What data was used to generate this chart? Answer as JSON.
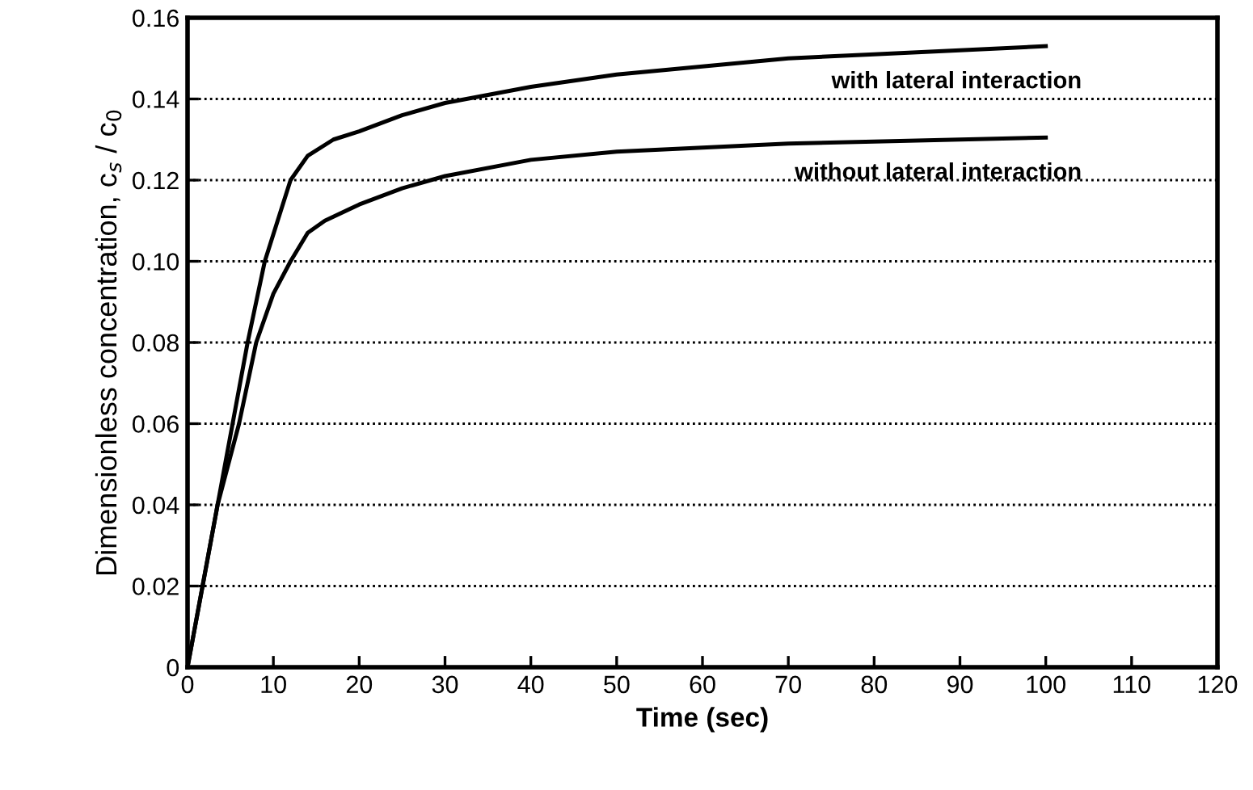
{
  "chart_data": {
    "type": "line",
    "xlabel": "Time (sec)",
    "ylabel": "Dimensionless concentration, c$_{s}$ / c$_{0}$",
    "series": [
      {
        "name": "with lateral interaction",
        "color": "#000000",
        "x": [
          0,
          3.5,
          7,
          9,
          12,
          14,
          17,
          20,
          25,
          30,
          40,
          50,
          60,
          70,
          80,
          90,
          100
        ],
        "values": [
          0,
          0.04,
          0.08,
          0.1,
          0.12,
          0.126,
          0.13,
          0.132,
          0.136,
          0.139,
          0.143,
          0.146,
          0.148,
          0.15,
          0.151,
          0.152,
          0.153
        ]
      },
      {
        "name": "without lateral interaction",
        "color": "#000000",
        "x": [
          0,
          3.5,
          6,
          8,
          10,
          12,
          14,
          16,
          20,
          25,
          30,
          40,
          50,
          60,
          70,
          80,
          90,
          100
        ],
        "values": [
          0,
          0.04,
          0.06,
          0.08,
          0.092,
          0.1,
          0.107,
          0.11,
          0.114,
          0.118,
          0.121,
          0.125,
          0.127,
          0.128,
          0.129,
          0.1295,
          0.13,
          0.1305
        ]
      }
    ],
    "xlim": [
      0,
      120
    ],
    "xticks": [
      0,
      10,
      20,
      30,
      40,
      50,
      60,
      70,
      80,
      90,
      100,
      110,
      120
    ],
    "ylim": [
      0,
      0.16
    ],
    "yticks": [
      {
        "value": 0,
        "label": "0"
      },
      {
        "value": 0.02,
        "label": "0.02"
      },
      {
        "value": 0.04,
        "label": "0.04"
      },
      {
        "value": 0.06,
        "label": "0.06"
      },
      {
        "value": 0.08,
        "label": "0.08"
      },
      {
        "value": 0.1,
        "label": "0.10"
      },
      {
        "value": 0.12,
        "label": "0.12"
      },
      {
        "value": 0.14,
        "label": "0.14"
      },
      {
        "value": 0.16,
        "label": "0.16"
      }
    ],
    "grid": "y",
    "marker": "none",
    "line_style": "solid"
  }
}
